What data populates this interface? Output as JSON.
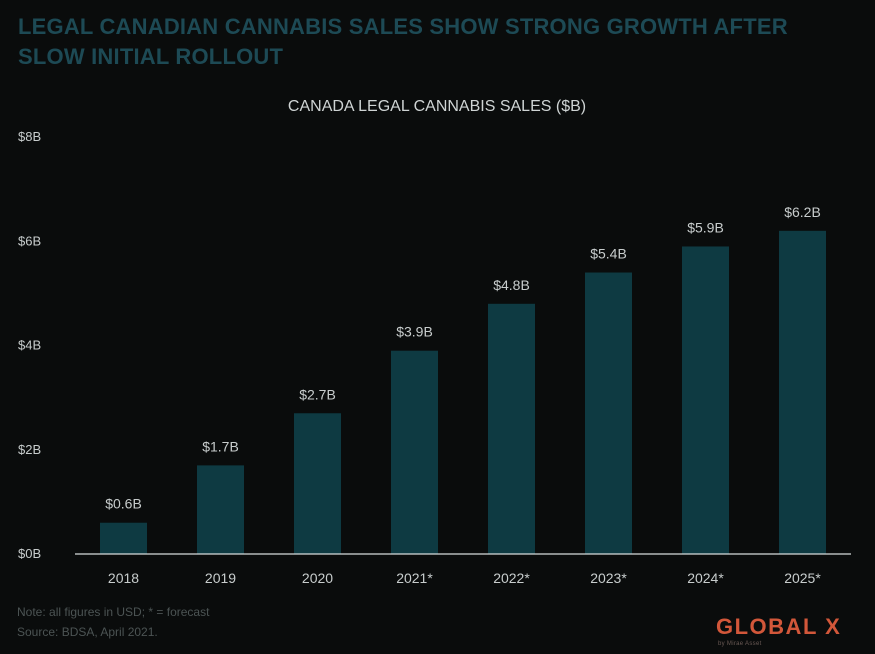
{
  "headline": "LEGAL CANADIAN CANNABIS SALES SHOW STRONG GROWTH AFTER SLOW INITIAL ROLLOUT",
  "footnote": {
    "note": "Note: all figures in USD; * = forecast",
    "source": "Source: BDSA, April 2021."
  },
  "logo": {
    "wordmark": "GLOBAL X",
    "tagline": "by Mirae Asset"
  },
  "colors": {
    "bar": "#0e3a42",
    "headline": "#1d4a55",
    "logo": "#d2573a",
    "background": "#0a0c0c"
  },
  "chart_data": {
    "type": "bar",
    "title": "CANADA LEGAL CANNABIS SALES ($B)",
    "categories": [
      "2018",
      "2019",
      "2020",
      "2021*",
      "2022*",
      "2023*",
      "2024*",
      "2025*"
    ],
    "values": [
      0.6,
      1.7,
      2.7,
      3.9,
      4.8,
      5.4,
      5.9,
      6.2
    ],
    "data_labels": [
      "$0.6B",
      "$1.7B",
      "$2.7B",
      "$3.9B",
      "$4.8B",
      "$5.4B",
      "$5.9B",
      "$6.2B"
    ],
    "ylim": [
      0,
      8
    ],
    "yticks": [
      0,
      2,
      4,
      6,
      8
    ],
    "ytick_labels": [
      "$0B",
      "$2B",
      "$4B",
      "$6B",
      "$8B"
    ],
    "xlabel": "",
    "ylabel": "",
    "grid": false,
    "legend": "none"
  }
}
